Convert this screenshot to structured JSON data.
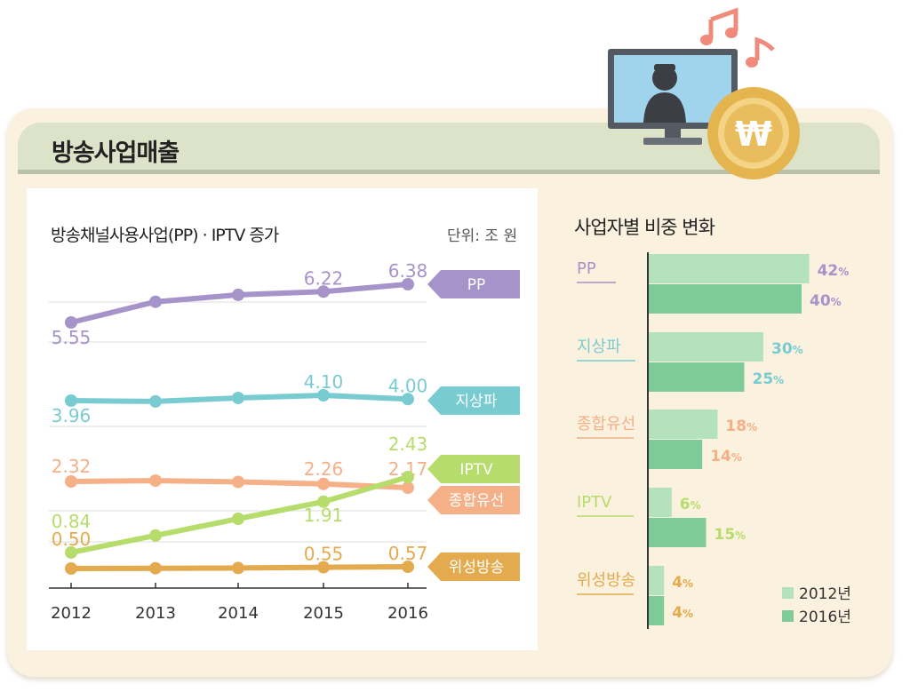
{
  "page_title": "방송사업매출",
  "line_chart": {
    "title": "방송채널사용사업(PP) · IPTV 증가",
    "unit": "단위: 조 원"
  },
  "bar_chart": {
    "title": "사업자별 비중 변화"
  },
  "colors": {
    "pp": "#a693c9",
    "terrestrial": "#79cbd2",
    "cable": "#f5b087",
    "iptv": "#b6dc6b",
    "satellite": "#e3aa4e",
    "bar_2012": "#b4e2bd",
    "bar_2016": "#7ecb98"
  },
  "chart_data": [
    {
      "type": "line",
      "title": "방송채널사용사업(PP) · IPTV 증가",
      "unit": "단위: 조 원",
      "x": [
        "2012",
        "2013",
        "2014",
        "2015",
        "2016"
      ],
      "series": [
        {
          "name": "PP",
          "values": [
            5.55,
            6.0,
            6.15,
            6.22,
            6.38
          ],
          "labels": {
            "0": "5.55",
            "3": "6.22",
            "4": "6.38"
          },
          "color": "#a693c9"
        },
        {
          "name": "지상파",
          "values": [
            3.96,
            3.94,
            4.03,
            4.1,
            4.0
          ],
          "labels": {
            "0": "3.96",
            "3": "4.10",
            "4": "4.00"
          },
          "color": "#79cbd2"
        },
        {
          "name": "IPTV",
          "values": [
            0.84,
            1.2,
            1.55,
            1.91,
            2.43
          ],
          "labels": {
            "0": "0.84",
            "3": "1.91",
            "4": "2.43"
          },
          "color": "#b6dc6b"
        },
        {
          "name": "종합유선",
          "values": [
            2.32,
            2.34,
            2.31,
            2.26,
            2.17
          ],
          "labels": {
            "0": "2.32",
            "3": "2.26",
            "4": "2.17"
          },
          "color": "#f5b087"
        },
        {
          "name": "위성방송",
          "values": [
            0.5,
            0.51,
            0.52,
            0.55,
            0.57
          ],
          "labels": {
            "0": "0.50",
            "3": "0.55",
            "4": "0.57"
          },
          "color": "#e3aa4e"
        }
      ]
    },
    {
      "type": "bar",
      "orientation": "horizontal",
      "title": "사업자별 비중 변화",
      "categories": [
        "PP",
        "지상파",
        "종합유선",
        "IPTV",
        "위성방송"
      ],
      "category_colors": [
        "#a693c9",
        "#79cbd2",
        "#f5b087",
        "#b6dc6b",
        "#e3aa4e"
      ],
      "series": [
        {
          "name": "2012년",
          "values": [
            42,
            30,
            18,
            6,
            4
          ],
          "labels": [
            "42%",
            "30%",
            "18%",
            "6%",
            "4%"
          ],
          "color": "#b4e2bd"
        },
        {
          "name": "2016년",
          "values": [
            40,
            25,
            14,
            15,
            4
          ],
          "labels": [
            "40%",
            "25%",
            "14%",
            "15%",
            "4%"
          ],
          "color": "#7ecb98"
        }
      ],
      "xlim": [
        0,
        100
      ],
      "legend": "bottom-right"
    }
  ]
}
